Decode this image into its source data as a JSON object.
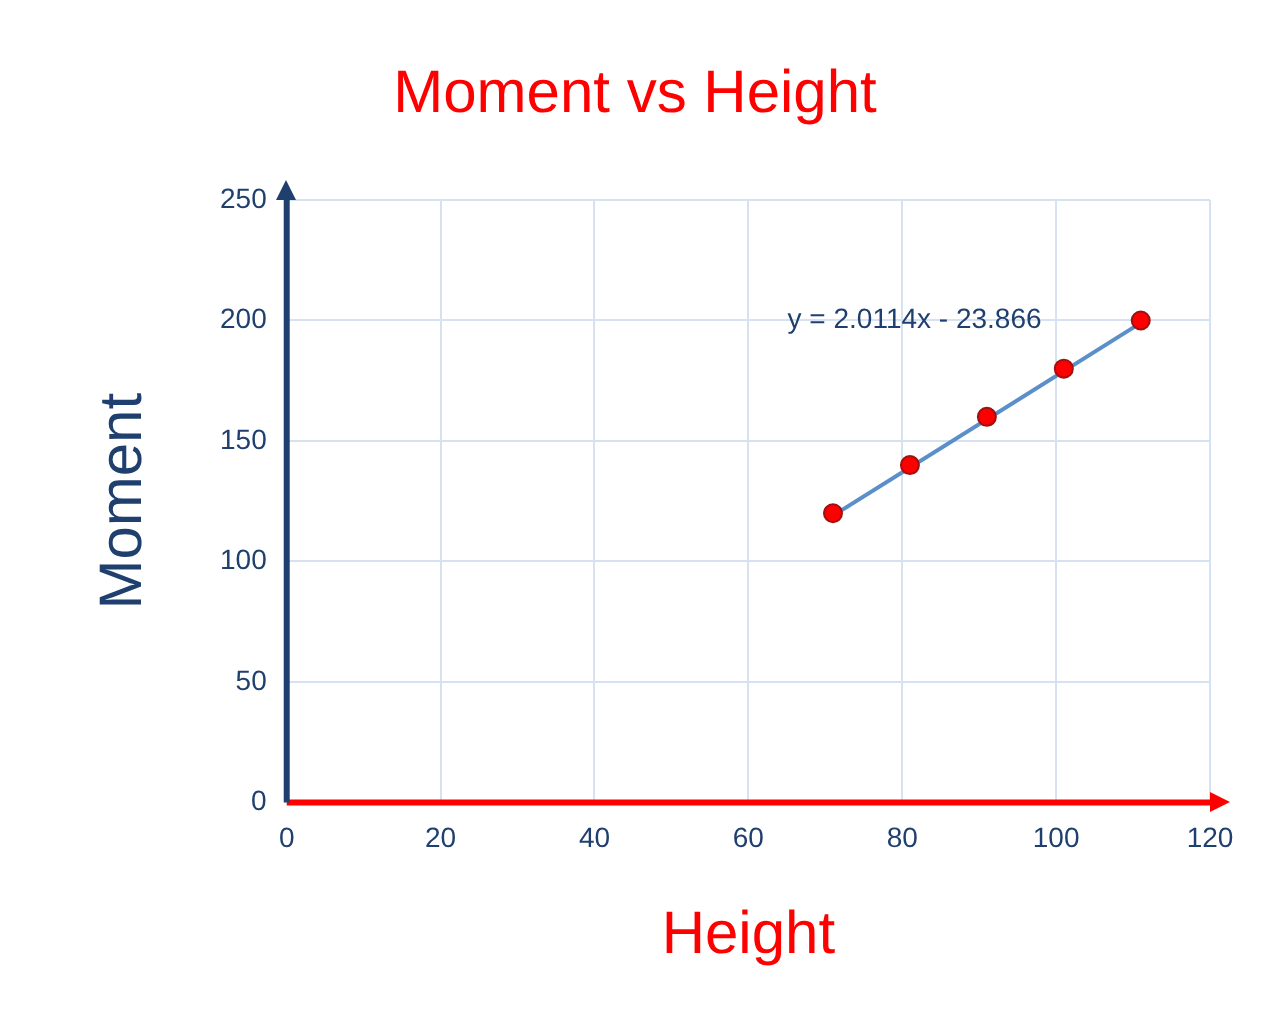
{
  "chart_data": {
    "type": "scatter",
    "title": "Moment vs Height",
    "xlabel": "Height",
    "ylabel": "Moment",
    "xlim": [
      0,
      120
    ],
    "xticks": [
      0,
      20,
      40,
      60,
      80,
      100,
      120
    ],
    "ylim": [
      0,
      250
    ],
    "yticks": [
      0,
      50,
      100,
      150,
      200,
      250
    ],
    "grid": true,
    "legend": false,
    "marker": "circle",
    "series": [
      {
        "type": "scatter",
        "color": "#ff0000",
        "x": [
          71,
          81,
          91,
          101,
          111
        ],
        "values": [
          120,
          140,
          160,
          180,
          200
        ]
      },
      {
        "type": "line",
        "color": "#5b8fc9",
        "marker": "none",
        "line_style": "solid",
        "x": [
          71,
          111
        ],
        "values": [
          119,
          199
        ]
      }
    ],
    "annotations": [
      "y = 2.0114x - 23.866"
    ]
  }
}
